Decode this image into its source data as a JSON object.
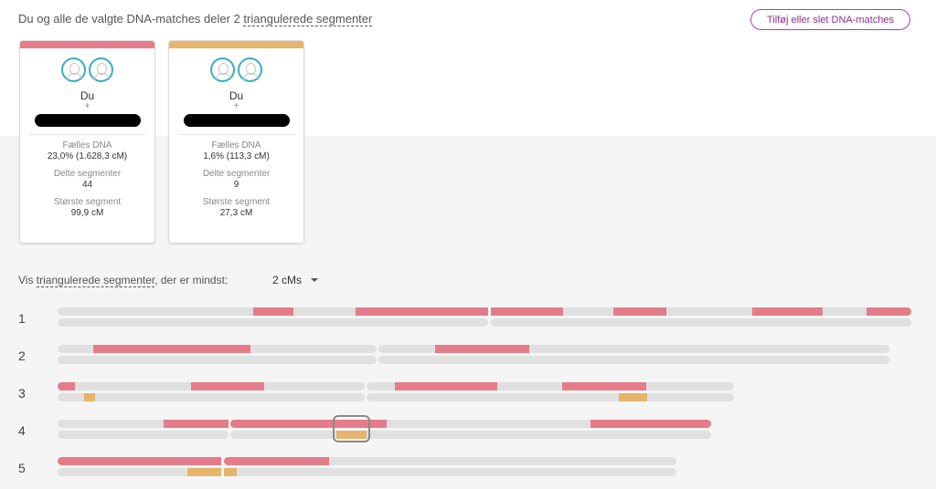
{
  "header": {
    "text_prefix": "Du og alle de valgte DNA-matches deler 2",
    "text_link": "triangulerede segmenter",
    "add_button": "Tilføj eller slet DNA-matches"
  },
  "colors": {
    "match1": "#e47c8b",
    "match2": "#e4b56a",
    "accent": "#b13cb3",
    "avatar_ring": "#37aebe"
  },
  "cards": [
    {
      "avatar_icons": [
        "person-icon",
        "person-icon"
      ],
      "name": "Du",
      "plus": "+",
      "shared_dna_label": "Fælles DNA",
      "shared_dna_value": "23,0% (1.628,3 cM)",
      "segments_label": "Delte segmenter",
      "segments_value": "44",
      "largest_label": "Største segment",
      "largest_value": "99,9 cM"
    },
    {
      "avatar_icons": [
        "person-icon",
        "person-icon"
      ],
      "name": "Du",
      "plus": "+",
      "shared_dna_label": "Fælles DNA",
      "shared_dna_value": "1,6% (113,3 cM)",
      "segments_label": "Delte segmenter",
      "segments_value": "9",
      "largest_label": "Største segment",
      "largest_value": "27,3 cM"
    }
  ],
  "filter": {
    "label_prefix": "Vis",
    "label_link": "triangulerede segmenter",
    "label_suffix": ", der er mindst:",
    "selected": "2 cMs"
  },
  "chromosomes": [
    {
      "number": "1"
    },
    {
      "number": "2"
    },
    {
      "number": "3"
    },
    {
      "number": "4"
    },
    {
      "number": "5"
    }
  ]
}
